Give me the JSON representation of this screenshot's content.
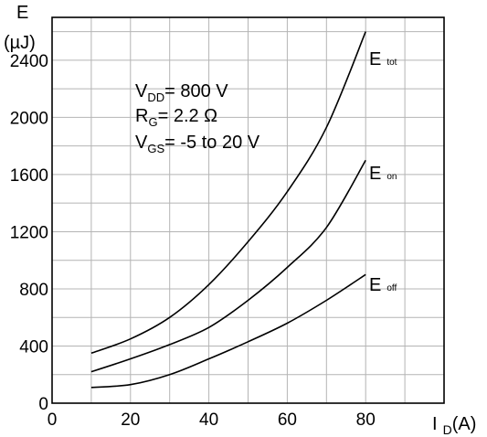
{
  "chart_data": {
    "type": "line",
    "ylabel": "E",
    "yunit": "(µJ)",
    "xlabel": "I",
    "xlabel_sub": "D",
    "xunit": "(A)",
    "xlim": [
      0,
      100
    ],
    "ylim": [
      0,
      2700
    ],
    "xticks": [
      "0",
      "20",
      "40",
      "60",
      "80"
    ],
    "yticks": [
      "0",
      "400",
      "800",
      "1200",
      "1600",
      "2000",
      "2400"
    ],
    "grid": true,
    "conditions": [
      {
        "main": "V",
        "sub": "DD",
        "rest": "= 800 V"
      },
      {
        "main": "R",
        "sub": "G",
        "rest": "= 2.2 Ω"
      },
      {
        "main": "V",
        "sub": "GS",
        "rest": "= -5 to 20 V"
      }
    ],
    "series": [
      {
        "name": "E tot",
        "label_main": "E",
        "label_sub": "tot",
        "x": [
          10,
          20,
          30,
          40,
          50,
          60,
          70,
          80
        ],
        "y": [
          350,
          450,
          600,
          830,
          1130,
          1480,
          1930,
          2600
        ]
      },
      {
        "name": "E on",
        "label_main": "E",
        "label_sub": "on",
        "x": [
          10,
          20,
          30,
          40,
          50,
          60,
          70,
          80
        ],
        "y": [
          220,
          310,
          410,
          530,
          720,
          950,
          1230,
          1700
        ]
      },
      {
        "name": "E off",
        "label_main": "E",
        "label_sub": "off",
        "x": [
          10,
          20,
          30,
          40,
          50,
          60,
          70,
          80
        ],
        "y": [
          110,
          130,
          200,
          310,
          430,
          560,
          720,
          900
        ]
      }
    ]
  }
}
